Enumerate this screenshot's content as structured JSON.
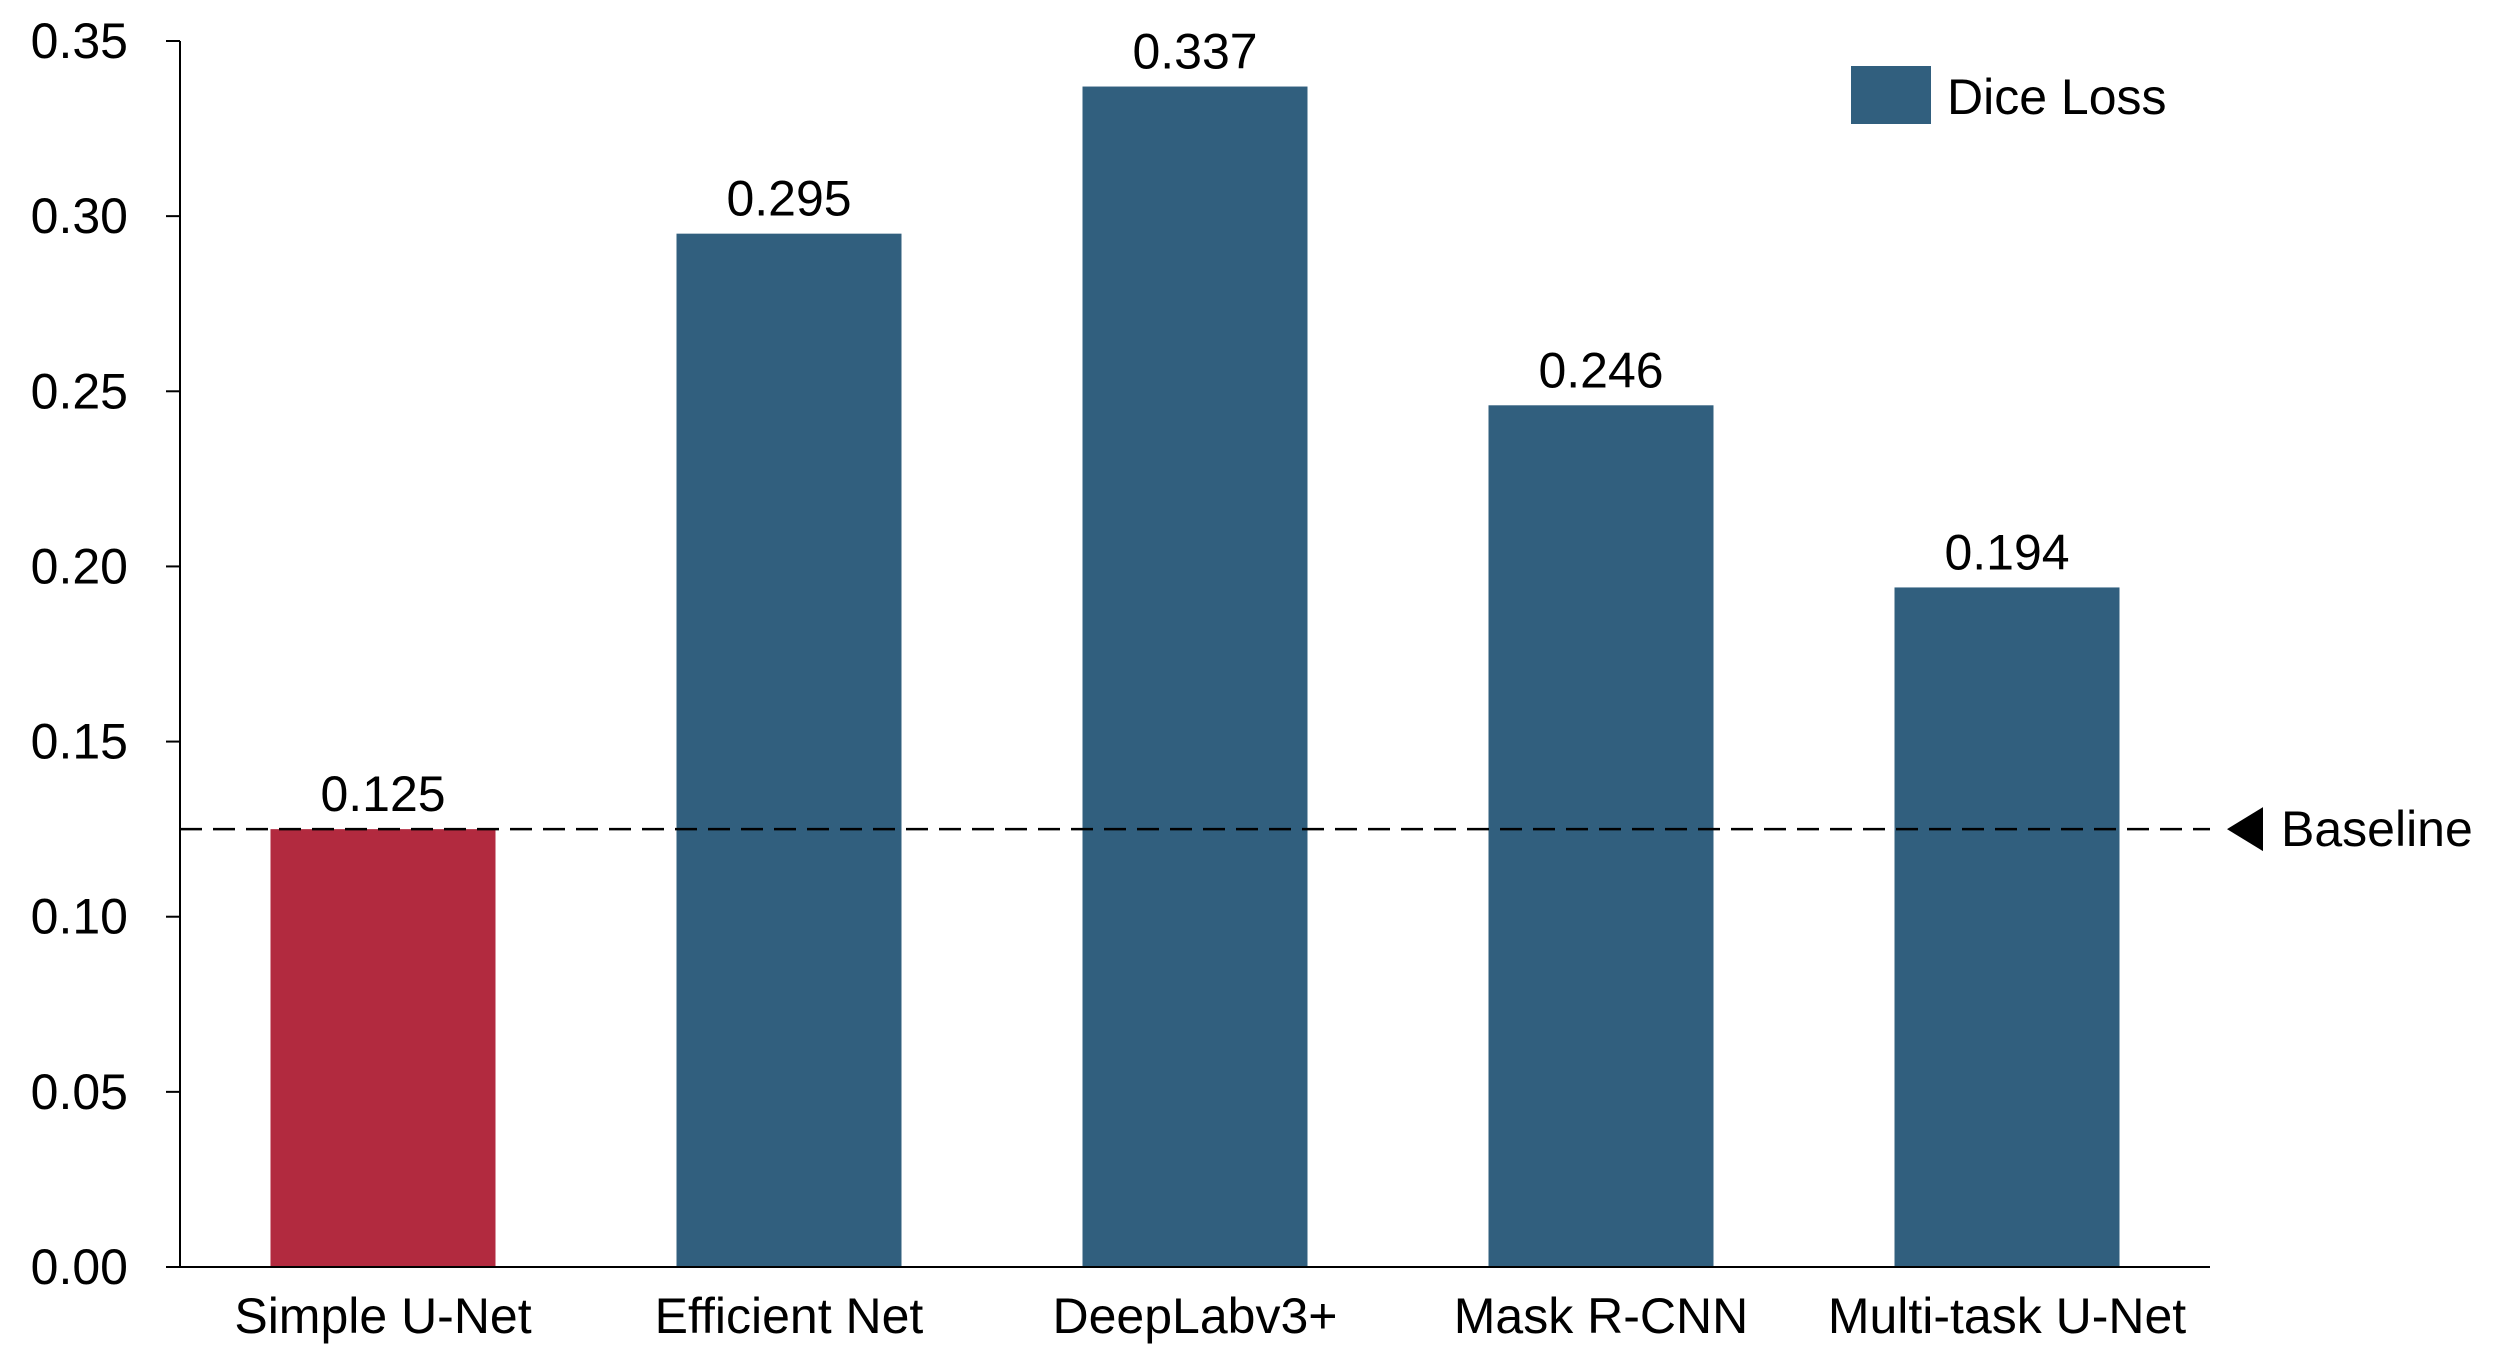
{
  "chart_data": {
    "type": "bar",
    "title": "",
    "xlabel": "",
    "ylabel": "",
    "categories": [
      "Simple U-Net",
      "Efficient Net",
      "DeepLabv3+",
      "Mask R-CNN",
      "Multi-task U-Net"
    ],
    "series": [
      {
        "name": "Dice Loss",
        "values": [
          0.125,
          0.295,
          0.337,
          0.246,
          0.194
        ],
        "data_labels": [
          "0.125",
          "0.295",
          "0.337",
          "0.246",
          "0.194"
        ]
      }
    ],
    "ylim": [
      0,
      0.35
    ],
    "yticks": [
      0,
      0.05,
      0.1,
      0.15,
      0.2,
      0.25,
      0.3,
      0.35
    ],
    "ytick_labels": [
      "0.00",
      "0.05",
      "0.10",
      "0.15",
      "0.20",
      "0.25",
      "0.30",
      "0.35"
    ],
    "grid": false,
    "legend": {
      "position": "top-right",
      "entries": [
        "Dice Loss"
      ]
    },
    "baseline": {
      "value": 0.125,
      "label": "Baseline",
      "style": "dashed"
    },
    "highlight_index": 0,
    "colors": {
      "series": "#315f7e",
      "highlight": "#b22a3f",
      "axis": "#000000",
      "baseline": "#000000"
    }
  }
}
